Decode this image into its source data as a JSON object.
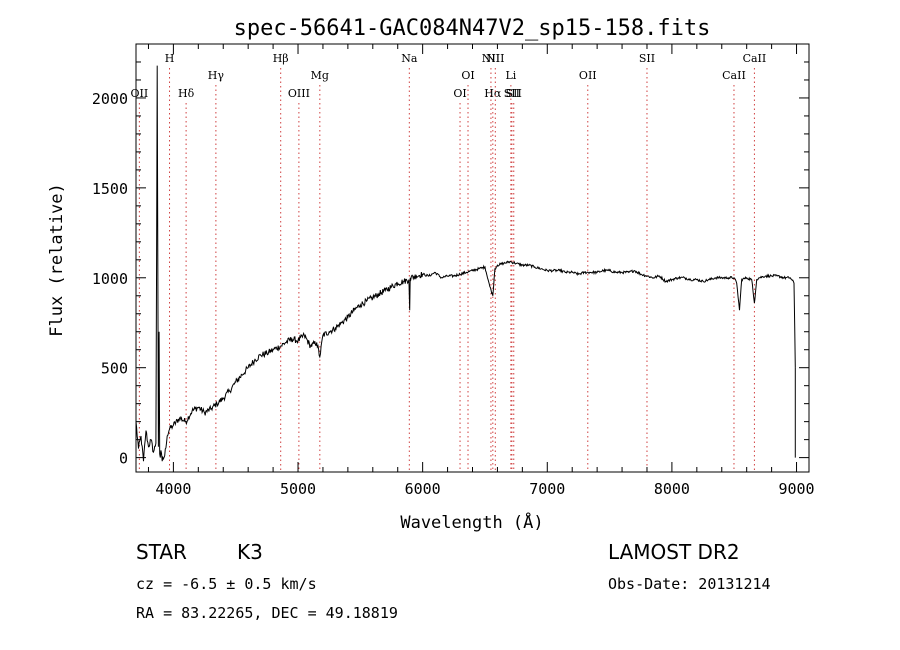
{
  "chart_data": {
    "type": "line",
    "title": "spec-56641-GAC084N47V2_sp15-158.fits",
    "xlabel": "Wavelength (Å)",
    "ylabel": "Flux (relative)",
    "xlim": [
      3700,
      9100
    ],
    "ylim": [
      -80,
      2300
    ],
    "xticks": [
      4000,
      5000,
      6000,
      7000,
      8000,
      9000
    ],
    "yticks": [
      0,
      500,
      1000,
      1500,
      2000
    ],
    "grid": false,
    "line_color": "#000000",
    "marker_color": "#d04040",
    "series": [
      {
        "x": [
          3700,
          3720,
          3740,
          3760,
          3780,
          3800,
          3820,
          3840,
          3860,
          3870,
          3880,
          3885,
          3890,
          3895,
          3900,
          3910,
          3930,
          3950,
          3970,
          4000,
          4050,
          4100,
          4150,
          4200,
          4250,
          4300,
          4350,
          4400,
          4450,
          4500,
          4550,
          4600,
          4650,
          4700,
          4750,
          4800,
          4861,
          4900,
          4950,
          5000,
          5050,
          5100,
          5150,
          5175,
          5200,
          5250,
          5300,
          5350,
          5400,
          5450,
          5500,
          5550,
          5600,
          5650,
          5700,
          5750,
          5800,
          5850,
          5890,
          5896,
          5900,
          5950,
          6000,
          6050,
          6100,
          6150,
          6200,
          6250,
          6300,
          6350,
          6400,
          6450,
          6500,
          6540,
          6563,
          6580,
          6600,
          6650,
          6700,
          6750,
          6800,
          6850,
          6900,
          6950,
          7000,
          7050,
          7100,
          7150,
          7200,
          7250,
          7300,
          7350,
          7400,
          7450,
          7500,
          7550,
          7600,
          7650,
          7700,
          7750,
          7800,
          7850,
          7900,
          7950,
          8000,
          8050,
          8100,
          8150,
          8200,
          8250,
          8300,
          8350,
          8400,
          8450,
          8498,
          8520,
          8542,
          8560,
          8600,
          8640,
          8662,
          8680,
          8700,
          8750,
          8800,
          8850,
          8900,
          8950,
          8980,
          8990
        ],
        "y": [
          200,
          50,
          120,
          -20,
          150,
          60,
          100,
          30,
          80,
          2180,
          60,
          700,
          20,
          0,
          40,
          -20,
          10,
          120,
          160,
          180,
          220,
          200,
          260,
          280,
          250,
          270,
          300,
          330,
          370,
          420,
          460,
          500,
          540,
          570,
          580,
          600,
          620,
          640,
          660,
          650,
          680,
          620,
          640,
          560,
          680,
          700,
          720,
          750,
          780,
          820,
          850,
          870,
          890,
          910,
          930,
          950,
          970,
          980,
          990,
          820,
          1000,
          1010,
          1020,
          1010,
          1030,
          1000,
          1010,
          1010,
          1020,
          1030,
          1040,
          1050,
          1060,
          950,
          900,
          1050,
          1070,
          1080,
          1090,
          1080,
          1070,
          1070,
          1060,
          1050,
          1040,
          1040,
          1040,
          1030,
          1030,
          1020,
          1030,
          1030,
          1030,
          1040,
          1040,
          1030,
          1030,
          1030,
          1040,
          1020,
          1010,
          1000,
          1010,
          980,
          990,
          1000,
          1000,
          990,
          990,
          980,
          990,
          1000,
          1000,
          1000,
          1000,
          970,
          820,
          990,
          1000,
          990,
          860,
          990,
          1000,
          1010,
          1010,
          1010,
          1000,
          1000,
          970,
          500
        ]
      }
    ],
    "spectral_lines": [
      {
        "label": "OII",
        "x": 3727,
        "tier": 3
      },
      {
        "label": "H",
        "x": 3969,
        "tier": 1
      },
      {
        "label": "Hδ",
        "x": 4102,
        "tier": 3
      },
      {
        "label": "Hγ",
        "x": 4341,
        "tier": 2
      },
      {
        "label": "Hβ",
        "x": 4861,
        "tier": 1
      },
      {
        "label": "OIII",
        "x": 5007,
        "tier": 3
      },
      {
        "label": "Mg",
        "x": 5175,
        "tier": 2
      },
      {
        "label": "Na",
        "x": 5893,
        "tier": 1
      },
      {
        "label": "OI",
        "x": 6300,
        "tier": 3
      },
      {
        "label": "OI",
        "x": 6364,
        "tier": 2
      },
      {
        "label": "NII",
        "x": 6548,
        "tier": 1
      },
      {
        "label": "Hα",
        "x": 6563,
        "tier": 3
      },
      {
        "label": "NII",
        "x": 6583,
        "tier": 1
      },
      {
        "label": "Li",
        "x": 6708,
        "tier": 2
      },
      {
        "label": "SII",
        "x": 6716,
        "tier": 3
      },
      {
        "label": "SII",
        "x": 6731,
        "tier": 3
      },
      {
        "label": "OII",
        "x": 7325,
        "tier": 2
      },
      {
        "label": "SII",
        "x": 7800,
        "tier": 1
      },
      {
        "label": "CaII",
        "x": 8498,
        "tier": 2
      },
      {
        "label": "CaII",
        "x": 8662,
        "tier": 1
      }
    ]
  },
  "info": {
    "object_class": "STAR",
    "subclass": "K3",
    "survey": "LAMOST DR2",
    "cz": "cz = -6.5 ± 0.5 km/s",
    "obs_date": "Obs-Date: 20131214",
    "coords": "RA =  83.22265, DEC =  49.18819"
  }
}
